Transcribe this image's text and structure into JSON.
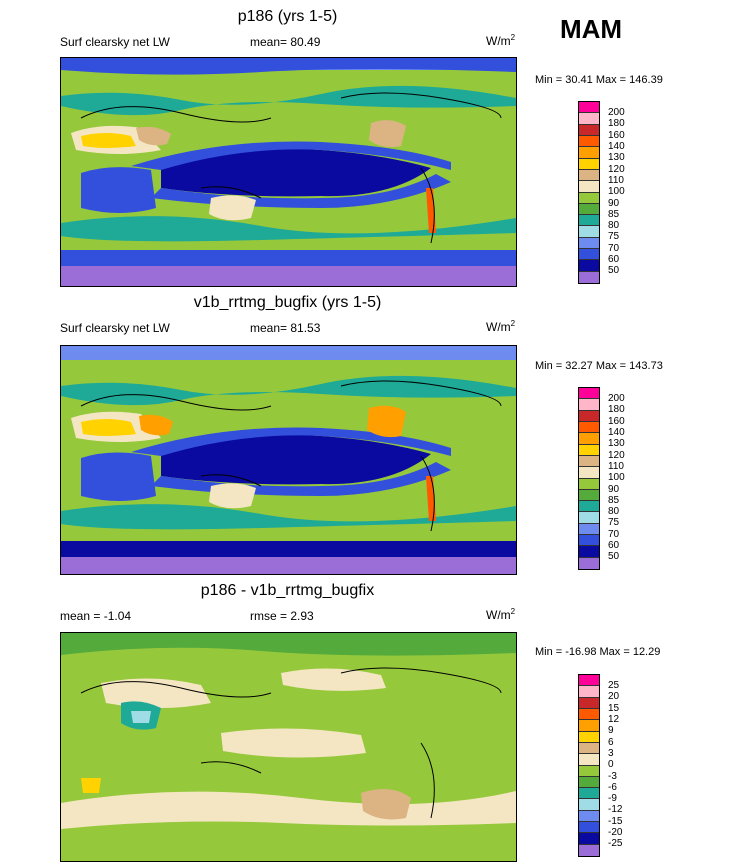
{
  "season": "MAM",
  "panels": [
    {
      "title": "p186 (yrs 1-5)",
      "left_label": "Surf clearsky net LW",
      "center_label": "mean=  80.49",
      "units": "W/m",
      "units_sup": "2",
      "minmax": "Min =  30.41 Max = 146.39",
      "colorbar": {
        "labels": [
          "200",
          "180",
          "160",
          "140",
          "130",
          "120",
          "110",
          "100",
          "90",
          "85",
          "80",
          "75",
          "70",
          "60",
          "50"
        ],
        "colors": [
          "#ff0099",
          "#ffb6c8",
          "#c8282a",
          "#ff5a00",
          "#ffa000",
          "#ffd200",
          "#dcb484",
          "#f5e6c3",
          "#96c83c",
          "#55aa3c",
          "#1eaa96",
          "#a0dce6",
          "#6e8cf0",
          "#3250dc",
          "#0a0aa0",
          "#9b6ed7"
        ]
      }
    },
    {
      "title": "v1b_rrtmg_bugfix (yrs 1-5)",
      "left_label": "Surf clearsky net LW",
      "center_label": "mean=  81.53",
      "units": "W/m",
      "units_sup": "2",
      "minmax": "Min =  32.27 Max = 143.73",
      "colorbar": {
        "labels": [
          "200",
          "180",
          "160",
          "140",
          "130",
          "120",
          "110",
          "100",
          "90",
          "85",
          "80",
          "75",
          "70",
          "60",
          "50"
        ],
        "colors": [
          "#ff0099",
          "#ffb6c8",
          "#c8282a",
          "#ff5a00",
          "#ffa000",
          "#ffd200",
          "#dcb484",
          "#f5e6c3",
          "#96c83c",
          "#55aa3c",
          "#1eaa96",
          "#a0dce6",
          "#6e8cf0",
          "#3250dc",
          "#0a0aa0",
          "#9b6ed7"
        ]
      }
    },
    {
      "title": "p186 - v1b_rrtmg_bugfix",
      "left_label": "mean =  -1.04",
      "center_label": "rmse =   2.93",
      "units": "W/m",
      "units_sup": "2",
      "minmax": "Min = -16.98 Max =  12.29",
      "colorbar": {
        "labels": [
          "25",
          "20",
          "15",
          "12",
          "9",
          "6",
          "3",
          "0",
          "-3",
          "-6",
          "-9",
          "-12",
          "-15",
          "-20",
          "-25"
        ],
        "colors": [
          "#ff0099",
          "#ffb6c8",
          "#c8282a",
          "#ff5a00",
          "#ffa000",
          "#ffd200",
          "#dcb484",
          "#f5e6c3",
          "#96c83c",
          "#55aa3c",
          "#1eaa96",
          "#a0dce6",
          "#6e8cf0",
          "#3250dc",
          "#0a0aa0",
          "#9b6ed7"
        ]
      }
    }
  ]
}
